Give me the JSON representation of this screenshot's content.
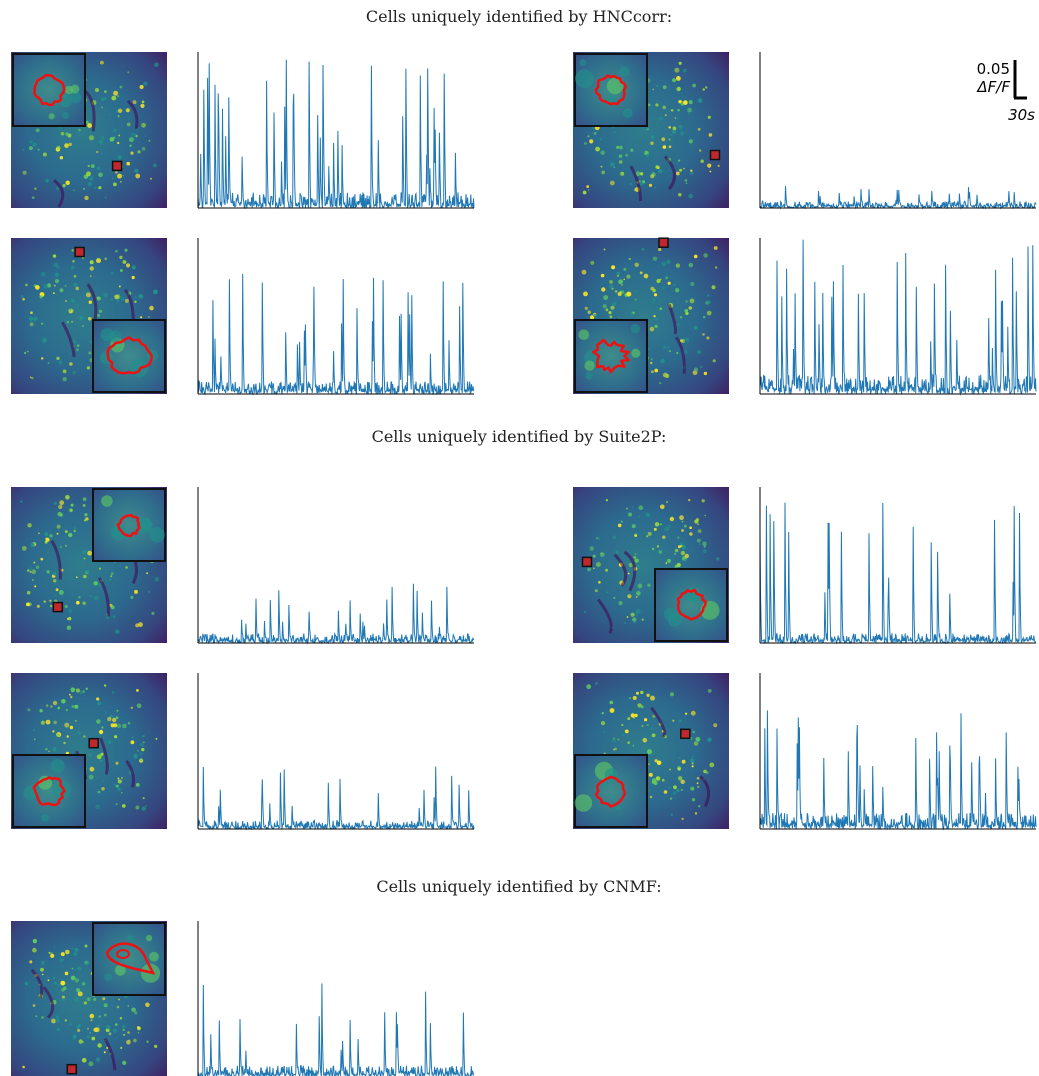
{
  "figure": {
    "sections": [
      {
        "title": "Cells uniquely identified by HNCcorr:",
        "panels": [
          {
            "seed": 11,
            "inset": "top-left",
            "marker": [
              0.68,
              0.73
            ],
            "amp": 0.95,
            "base": 0.1,
            "spikes": 40,
            "contour": "blob"
          },
          {
            "seed": 23,
            "inset": "top-left",
            "marker": [
              0.91,
              0.66
            ],
            "amp": 0.14,
            "base": 0.04,
            "spikes": 20,
            "contour": "blob"
          },
          {
            "seed": 37,
            "inset": "bottom-right",
            "marker": [
              0.44,
              0.09
            ],
            "amp": 0.77,
            "base": 0.08,
            "spikes": 30,
            "contour": "wide"
          },
          {
            "seed": 41,
            "inset": "bottom-left",
            "marker": [
              0.58,
              0.03
            ],
            "amp": 0.99,
            "base": 0.12,
            "spikes": 34,
            "contour": "irregular"
          }
        ]
      },
      {
        "title": "Cells uniquely identified by Suite2P:",
        "panels": [
          {
            "seed": 53,
            "inset": "top-right",
            "marker": [
              0.3,
              0.77
            ],
            "amp": 0.38,
            "base": 0.06,
            "spikes": 24,
            "contour": "small"
          },
          {
            "seed": 67,
            "inset": "bottom-right",
            "marker": [
              0.09,
              0.48
            ],
            "amp": 0.9,
            "base": 0.06,
            "spikes": 22,
            "contour": "blob"
          },
          {
            "seed": 71,
            "inset": "bottom-left",
            "marker": [
              0.53,
              0.45
            ],
            "amp": 0.4,
            "base": 0.05,
            "spikes": 20,
            "contour": "blob"
          },
          {
            "seed": 83,
            "inset": "bottom-left",
            "marker": [
              0.72,
              0.39
            ],
            "amp": 0.76,
            "base": 0.1,
            "spikes": 30,
            "contour": "blob"
          }
        ]
      },
      {
        "title": "Cells uniquely identified by CNMF:",
        "panels": [
          {
            "seed": 97,
            "inset": "top-right",
            "marker": [
              0.39,
              0.95
            ],
            "amp": 0.6,
            "base": 0.07,
            "spikes": 18,
            "contour": "eye"
          }
        ]
      }
    ],
    "scale_bar": {
      "value_label": "0.05",
      "unit_label": "ΔF/F",
      "time_label": "30s"
    },
    "colors": {
      "trace": "#1f77b4",
      "contour": "#ee1111",
      "marker_fill": "#c0282e",
      "image_dark": "#440154",
      "image_mid": "#3b528b",
      "image_teal": "#21918c",
      "image_green": "#5ec962",
      "image_bright": "#fde725",
      "axis": "#000000"
    }
  }
}
